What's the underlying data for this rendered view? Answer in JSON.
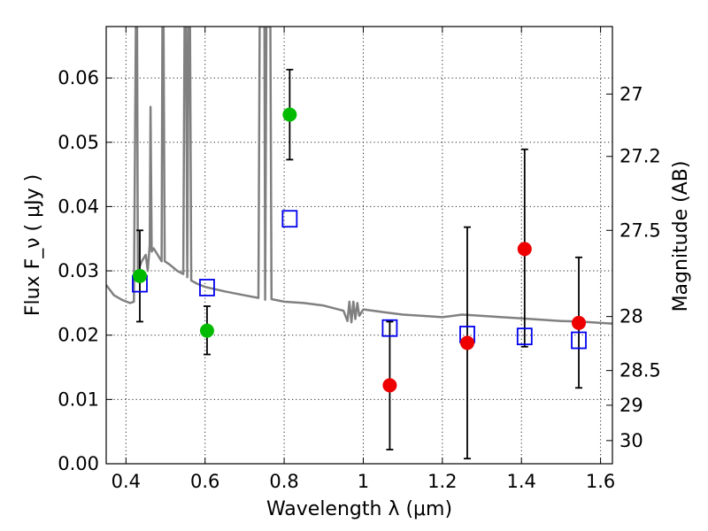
{
  "chart_data": {
    "type": "scatter",
    "xlabel": "Wavelength  λ (μm)",
    "ylabel": "Flux  F_ν  ( μJy )",
    "y2label": "Magnitude (AB)",
    "xlim": [
      0.35,
      1.63
    ],
    "ylim": [
      0.0,
      0.068
    ],
    "grid": true,
    "x_ticks": [
      0.4,
      0.6,
      0.8,
      1.0,
      1.2,
      1.4,
      1.6
    ],
    "x_tick_labels": [
      "0.4",
      "0.6",
      "0.8",
      "1",
      "1.2",
      "1.4",
      "1.6"
    ],
    "y_ticks": [
      0.0,
      0.01,
      0.02,
      0.03,
      0.04,
      0.05,
      0.06
    ],
    "y_tick_labels": [
      "0.00",
      "0.01",
      "0.02",
      "0.03",
      "0.04",
      "0.05",
      "0.06"
    ],
    "y2_ticks": [
      {
        "label": "27",
        "flux": 0.0575
      },
      {
        "label": "27.2",
        "flux": 0.0478
      },
      {
        "label": "27.5",
        "flux": 0.0363
      },
      {
        "label": "28",
        "flux": 0.0229
      },
      {
        "label": "28.5",
        "flux": 0.0145
      },
      {
        "label": "29",
        "flux": 0.0091
      },
      {
        "label": "30",
        "flux": 0.0036
      }
    ],
    "colors": {
      "model": "#808080",
      "detection": "#00bb00",
      "upper": "#ee0000",
      "model_photometry": "#0000ee",
      "errorbar": "#000000"
    },
    "series": [
      {
        "role": "observed-green",
        "points": [
          {
            "x": 0.435,
            "y": 0.0292,
            "ylow": 0.0221,
            "yhigh": 0.0363
          },
          {
            "x": 0.605,
            "y": 0.0207,
            "ylow": 0.017,
            "yhigh": 0.0245
          },
          {
            "x": 0.814,
            "y": 0.0543,
            "ylow": 0.0473,
            "yhigh": 0.0613
          }
        ]
      },
      {
        "role": "observed-red",
        "points": [
          {
            "x": 1.067,
            "y": 0.0122,
            "ylow": 0.0022,
            "yhigh": 0.0221
          },
          {
            "x": 1.263,
            "y": 0.0188,
            "ylow": 0.0008,
            "yhigh": 0.0368
          },
          {
            "x": 1.408,
            "y": 0.0334,
            "ylow": 0.0182,
            "yhigh": 0.0489
          },
          {
            "x": 1.545,
            "y": 0.0219,
            "ylow": 0.0118,
            "yhigh": 0.0321
          }
        ]
      },
      {
        "role": "model-photometry-squares",
        "points": [
          {
            "x": 0.435,
            "y": 0.028
          },
          {
            "x": 0.605,
            "y": 0.0274
          },
          {
            "x": 0.814,
            "y": 0.0381
          },
          {
            "x": 1.067,
            "y": 0.0211
          },
          {
            "x": 1.263,
            "y": 0.0201
          },
          {
            "x": 1.408,
            "y": 0.0198
          },
          {
            "x": 1.545,
            "y": 0.0192
          }
        ]
      },
      {
        "role": "model-spectrum-line",
        "points": [
          [
            0.35,
            0.0278
          ],
          [
            0.37,
            0.0262
          ],
          [
            0.39,
            0.0255
          ],
          [
            0.41,
            0.025
          ],
          [
            0.42,
            0.0252
          ],
          [
            0.425,
            0.068
          ],
          [
            0.428,
            0.068
          ],
          [
            0.43,
            0.03
          ],
          [
            0.44,
            0.0315
          ],
          [
            0.45,
            0.0325
          ],
          [
            0.455,
            0.03
          ],
          [
            0.46,
            0.034
          ],
          [
            0.462,
            0.0555
          ],
          [
            0.465,
            0.033
          ],
          [
            0.47,
            0.0335
          ],
          [
            0.48,
            0.0325
          ],
          [
            0.49,
            0.0315
          ],
          [
            0.492,
            0.068
          ],
          [
            0.495,
            0.068
          ],
          [
            0.498,
            0.0315
          ],
          [
            0.51,
            0.031
          ],
          [
            0.53,
            0.03
          ],
          [
            0.545,
            0.0295
          ],
          [
            0.548,
            0.068
          ],
          [
            0.552,
            0.068
          ],
          [
            0.555,
            0.029
          ],
          [
            0.558,
            0.068
          ],
          [
            0.562,
            0.068
          ],
          [
            0.565,
            0.0285
          ],
          [
            0.58,
            0.028
          ],
          [
            0.6,
            0.0275
          ],
          [
            0.65,
            0.0268
          ],
          [
            0.7,
            0.0262
          ],
          [
            0.735,
            0.0258
          ],
          [
            0.738,
            0.068
          ],
          [
            0.75,
            0.068
          ],
          [
            0.752,
            0.0255
          ],
          [
            0.755,
            0.068
          ],
          [
            0.765,
            0.068
          ],
          [
            0.768,
            0.0256
          ],
          [
            0.8,
            0.0252
          ],
          [
            0.85,
            0.025
          ],
          [
            0.9,
            0.0246
          ],
          [
            0.95,
            0.0238
          ],
          [
            0.96,
            0.0222
          ],
          [
            0.965,
            0.0252
          ],
          [
            0.97,
            0.022
          ],
          [
            0.975,
            0.0252
          ],
          [
            0.98,
            0.0225
          ],
          [
            0.985,
            0.025
          ],
          [
            0.99,
            0.023
          ],
          [
            1.0,
            0.024
          ],
          [
            1.05,
            0.0236
          ],
          [
            1.1,
            0.0232
          ],
          [
            1.15,
            0.023
          ],
          [
            1.2,
            0.0228
          ],
          [
            1.25,
            0.0232
          ],
          [
            1.3,
            0.023
          ],
          [
            1.35,
            0.0228
          ],
          [
            1.4,
            0.0226
          ],
          [
            1.45,
            0.0224
          ],
          [
            1.5,
            0.0222
          ],
          [
            1.55,
            0.0221
          ],
          [
            1.6,
            0.0219
          ],
          [
            1.63,
            0.0218
          ]
        ]
      }
    ]
  }
}
